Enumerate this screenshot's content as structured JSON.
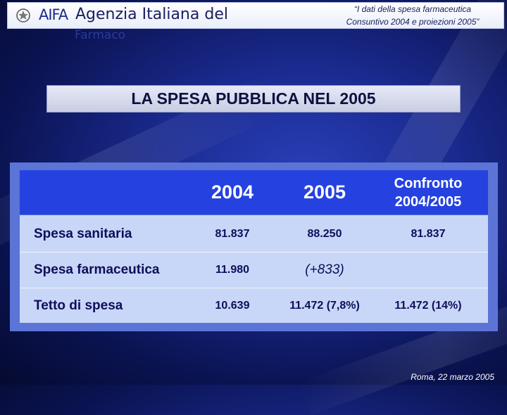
{
  "header": {
    "logo": "AIFA",
    "org_name": "Agenzia Italiana del",
    "org_name_overflow": "Farmaco",
    "doc_title_line1": "“I dati della spesa farmaceutica",
    "doc_title_line2": "Consuntivo 2004 e proiezioni 2005”"
  },
  "section_title": "LA SPESA PUBBLICA NEL 2005",
  "table": {
    "columns": [
      "",
      "2004",
      "2005",
      "Confronto 2004/2005"
    ],
    "col_confronto_line1": "Confronto",
    "col_confronto_line2": "2004/2005",
    "rows": [
      {
        "label": "Spesa sanitaria",
        "v2004": "81.837",
        "v2005": "88.250",
        "confronto": "81.837"
      },
      {
        "label": "Spesa farmaceutica",
        "v2004": "11.980",
        "v2005": "(+833)",
        "confronto": ""
      },
      {
        "label": "Tetto di spesa",
        "v2004": "10.639",
        "v2005": "11.472 (7,8%)",
        "confronto": "11.472 (14%)"
      }
    ]
  },
  "footer": "Roma, 22 marzo 2005",
  "colors": {
    "background": "#1a2a8f",
    "table_header": "#2542e0",
    "table_body": "#c8d7f7",
    "table_frame": "#5b74d6"
  }
}
